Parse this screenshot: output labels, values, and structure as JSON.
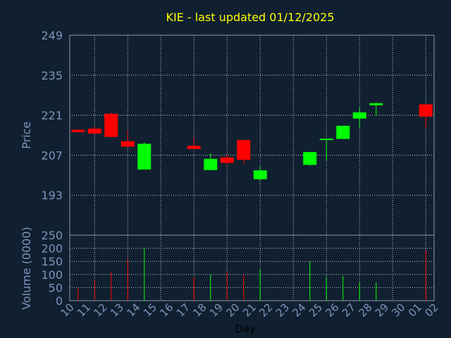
{
  "chart_data": {
    "type": "candlestick",
    "title": "KIE - last updated 01/12/2025",
    "ylabel": "Price",
    "volume_label": "Volume (0000)",
    "xlabel": "Day",
    "price_ylim": [
      179,
      249
    ],
    "price_yticks": [
      "249",
      "235",
      "221",
      "207",
      "193"
    ],
    "volume_ylim": [
      0,
      250
    ],
    "volume_yticks": [
      "250",
      "200",
      "150",
      "100",
      "50",
      "0"
    ],
    "x_ticks": [
      "10",
      "11",
      "12",
      "13",
      "14",
      "15",
      "16",
      "17",
      "18",
      "19",
      "20",
      "21",
      "22",
      "23",
      "24",
      "25",
      "26",
      "27",
      "28",
      "29",
      "30",
      "01",
      "02"
    ],
    "grid": true,
    "colors": {
      "background": "#102030",
      "title": "#ffff00",
      "axis_text": "#7a95bb",
      "up": "#00ff00",
      "down": "#ff0000",
      "grid": "#c0c8d0"
    },
    "candles": [
      {
        "day": "10",
        "open": 215.9,
        "high": 216.2,
        "low": 215.0,
        "close": 215.1,
        "volume": 50
      },
      {
        "day": "11",
        "open": 216.3,
        "high": 217.1,
        "low": 214.3,
        "close": 214.6,
        "volume": 80
      },
      {
        "day": "12",
        "open": 221.5,
        "high": 221.9,
        "low": 213.2,
        "close": 213.4,
        "volume": 110
      },
      {
        "day": "13",
        "open": 211.9,
        "high": 215.7,
        "low": 209.9,
        "close": 210.0,
        "volume": 160
      },
      {
        "day": "14",
        "open": 202.0,
        "high": 211.5,
        "low": 202.0,
        "close": 211.0,
        "volume": 200
      },
      {
        "day": "17",
        "open": 210.3,
        "high": 213.0,
        "low": 208.9,
        "close": 209.2,
        "volume": 90
      },
      {
        "day": "18",
        "open": 201.8,
        "high": 207.6,
        "low": 201.7,
        "close": 205.7,
        "volume": 100
      },
      {
        "day": "19",
        "open": 206.2,
        "high": 207.3,
        "low": 203.5,
        "close": 204.3,
        "volume": 110
      },
      {
        "day": "20",
        "open": 212.3,
        "high": 212.4,
        "low": 204.0,
        "close": 205.4,
        "volume": 100
      },
      {
        "day": "21",
        "open": 198.6,
        "high": 203.0,
        "low": 198.1,
        "close": 201.7,
        "volume": 120
      },
      {
        "day": "24",
        "open": 203.6,
        "high": 208.2,
        "low": 203.2,
        "close": 208.1,
        "volume": 150
      },
      {
        "day": "25",
        "open": 212.4,
        "high": 212.8,
        "low": 205.0,
        "close": 212.8,
        "volume": 90
      },
      {
        "day": "26",
        "open": 212.7,
        "high": 217.3,
        "low": 212.6,
        "close": 217.3,
        "volume": 95
      },
      {
        "day": "27",
        "open": 219.8,
        "high": 223.8,
        "low": 216.6,
        "close": 222.0,
        "volume": 70
      },
      {
        "day": "28",
        "open": 224.5,
        "high": 225.4,
        "low": 221.0,
        "close": 225.2,
        "volume": 70
      },
      {
        "day": "01",
        "open": 224.8,
        "high": 224.8,
        "low": 216.8,
        "close": 220.5,
        "volume": 190
      }
    ]
  }
}
